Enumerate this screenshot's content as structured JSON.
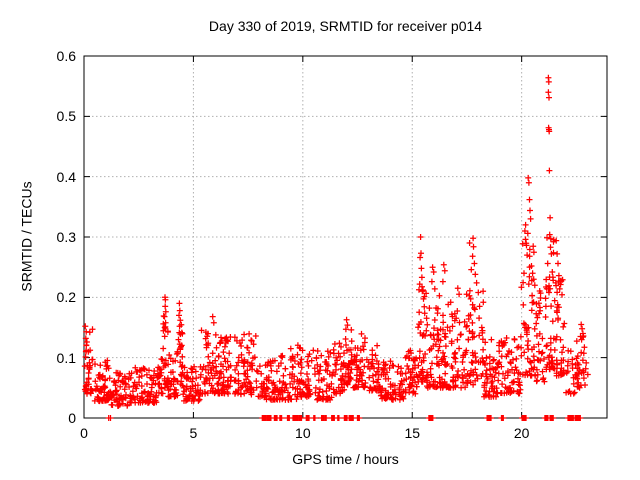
{
  "chart_data": {
    "type": "scatter",
    "title": "Day 330 of 2019, SRMTID for receiver p014",
    "xlabel": "GPS time / hours",
    "ylabel": "SRMTID / TECUs",
    "xlim": [
      0,
      23.9
    ],
    "ylim": [
      0,
      0.6
    ],
    "xticks": [
      0,
      5,
      10,
      15,
      20
    ],
    "yticks": [
      0,
      0.1,
      0.2,
      0.3,
      0.4,
      0.5,
      0.6
    ],
    "grid": true,
    "grid_color": "#b0b0b0",
    "frame_color": "#000000",
    "marker": {
      "style": "plus",
      "color": "#ff0000",
      "size": 7
    },
    "series_name": "SRMTID",
    "baseline_clusters": [
      [
        0.02,
        0.45,
        40,
        0.04,
        0.155
      ],
      [
        0.45,
        1.2,
        58,
        0.028,
        0.105
      ],
      [
        1.2,
        2.3,
        70,
        0.02,
        0.075
      ],
      [
        2.3,
        3.35,
        75,
        0.025,
        0.085
      ],
      [
        3.35,
        3.62,
        20,
        0.04,
        0.105
      ],
      [
        3.62,
        3.85,
        26,
        0.05,
        0.175
      ],
      [
        3.85,
        4.28,
        32,
        0.035,
        0.115
      ],
      [
        4.28,
        4.52,
        24,
        0.05,
        0.165
      ],
      [
        4.52,
        5.35,
        60,
        0.028,
        0.085
      ],
      [
        5.35,
        6.25,
        64,
        0.04,
        0.15
      ],
      [
        6.25,
        7.15,
        64,
        0.04,
        0.135
      ],
      [
        7.15,
        7.95,
        56,
        0.038,
        0.14
      ],
      [
        7.95,
        8.65,
        44,
        0.03,
        0.095
      ],
      [
        8.65,
        9.75,
        70,
        0.03,
        0.105
      ],
      [
        9.75,
        10.55,
        54,
        0.035,
        0.125
      ],
      [
        10.55,
        11.35,
        54,
        0.03,
        0.115
      ],
      [
        11.35,
        11.9,
        40,
        0.04,
        0.125
      ],
      [
        11.9,
        12.3,
        32,
        0.055,
        0.15
      ],
      [
        12.3,
        12.95,
        48,
        0.05,
        0.14
      ],
      [
        12.95,
        13.55,
        42,
        0.045,
        0.125
      ],
      [
        13.55,
        14.65,
        72,
        0.03,
        0.095
      ],
      [
        14.65,
        15.25,
        44,
        0.04,
        0.115
      ],
      [
        15.25,
        15.6,
        34,
        0.06,
        0.22
      ],
      [
        15.6,
        16.3,
        60,
        0.05,
        0.21
      ],
      [
        16.3,
        17.45,
        85,
        0.05,
        0.195
      ],
      [
        17.45,
        18.25,
        62,
        0.055,
        0.22
      ],
      [
        18.25,
        18.85,
        44,
        0.035,
        0.13
      ],
      [
        18.85,
        19.95,
        68,
        0.04,
        0.135
      ],
      [
        19.95,
        20.65,
        55,
        0.07,
        0.3
      ],
      [
        20.65,
        21.05,
        30,
        0.06,
        0.22
      ],
      [
        21.05,
        21.55,
        45,
        0.08,
        0.3
      ],
      [
        21.55,
        21.95,
        40,
        0.07,
        0.23
      ],
      [
        21.95,
        22.45,
        18,
        0.04,
        0.12
      ],
      [
        22.45,
        23.05,
        36,
        0.05,
        0.155
      ]
    ],
    "peak_points": [
      [
        0.06,
        0.152
      ],
      [
        0.1,
        0.143
      ],
      [
        0.08,
        0.132
      ],
      [
        3.7,
        0.2
      ],
      [
        3.72,
        0.196
      ],
      [
        3.71,
        0.185
      ],
      [
        3.74,
        0.176
      ],
      [
        3.68,
        0.168
      ],
      [
        3.73,
        0.158
      ],
      [
        3.69,
        0.15
      ],
      [
        4.36,
        0.19
      ],
      [
        4.38,
        0.178
      ],
      [
        4.34,
        0.17
      ],
      [
        4.4,
        0.162
      ],
      [
        4.37,
        0.152
      ],
      [
        5.88,
        0.168
      ],
      [
        5.93,
        0.158
      ],
      [
        9.45,
        0.115
      ],
      [
        12.0,
        0.163
      ],
      [
        12.04,
        0.154
      ],
      [
        11.97,
        0.147
      ],
      [
        15.38,
        0.3
      ],
      [
        15.4,
        0.273
      ],
      [
        15.36,
        0.266
      ],
      [
        15.42,
        0.248
      ],
      [
        15.44,
        0.233
      ],
      [
        15.34,
        0.222
      ],
      [
        15.46,
        0.21
      ],
      [
        15.93,
        0.25
      ],
      [
        15.98,
        0.242
      ],
      [
        15.9,
        0.226
      ],
      [
        16.03,
        0.214
      ],
      [
        16.44,
        0.254
      ],
      [
        16.49,
        0.244
      ],
      [
        16.4,
        0.226
      ],
      [
        17.08,
        0.215
      ],
      [
        17.14,
        0.205
      ],
      [
        17.62,
        0.29
      ],
      [
        17.78,
        0.298
      ],
      [
        17.8,
        0.284
      ],
      [
        17.76,
        0.268
      ],
      [
        17.84,
        0.256
      ],
      [
        17.7,
        0.246
      ],
      [
        17.88,
        0.238
      ],
      [
        17.94,
        0.224
      ],
      [
        18.02,
        0.208
      ],
      [
        20.3,
        0.398
      ],
      [
        20.33,
        0.39
      ],
      [
        20.36,
        0.362
      ],
      [
        20.38,
        0.344
      ],
      [
        20.41,
        0.33
      ],
      [
        20.18,
        0.32
      ],
      [
        20.15,
        0.31
      ],
      [
        20.28,
        0.306
      ],
      [
        20.22,
        0.286
      ],
      [
        20.25,
        0.27
      ],
      [
        20.45,
        0.252
      ],
      [
        20.5,
        0.24
      ],
      [
        20.55,
        0.23
      ],
      [
        20.6,
        0.22
      ],
      [
        21.22,
        0.564
      ],
      [
        21.24,
        0.557
      ],
      [
        21.22,
        0.54
      ],
      [
        21.25,
        0.531
      ],
      [
        21.23,
        0.481
      ],
      [
        21.25,
        0.478
      ],
      [
        21.26,
        0.475
      ],
      [
        21.27,
        0.41
      ],
      [
        21.3,
        0.332
      ],
      [
        21.28,
        0.304
      ],
      [
        21.33,
        0.297
      ],
      [
        21.36,
        0.272
      ],
      [
        21.19,
        0.256
      ],
      [
        21.4,
        0.242
      ],
      [
        21.44,
        0.228
      ],
      [
        21.58,
        0.294
      ],
      [
        21.62,
        0.272
      ],
      [
        21.66,
        0.256
      ],
      [
        21.7,
        0.236
      ],
      [
        21.56,
        0.224
      ],
      [
        21.74,
        0.214
      ],
      [
        22.72,
        0.155
      ],
      [
        22.76,
        0.148
      ],
      [
        22.8,
        0.14
      ],
      [
        22.74,
        0.13
      ]
    ],
    "zero_runs": [
      [
        1.13,
        1.22,
        0.08
      ],
      [
        8.15,
        8.32,
        0.03
      ],
      [
        8.36,
        8.56,
        0.03
      ],
      [
        8.7,
        8.82,
        0.04
      ],
      [
        8.95,
        9.06,
        0.04
      ],
      [
        9.3,
        9.4,
        0.04
      ],
      [
        9.55,
        9.76,
        0.03
      ],
      [
        9.82,
        9.94,
        0.04
      ],
      [
        10.16,
        10.3,
        0.04
      ],
      [
        10.5,
        10.58,
        0.05
      ],
      [
        10.86,
        10.96,
        0.05
      ],
      [
        11.02,
        11.08,
        0.05
      ],
      [
        11.32,
        11.46,
        0.04
      ],
      [
        11.6,
        11.68,
        0.05
      ],
      [
        11.9,
        12.02,
        0.04
      ],
      [
        12.12,
        12.32,
        0.03
      ],
      [
        12.5,
        12.6,
        0.04
      ],
      [
        15.76,
        15.94,
        0.03
      ],
      [
        18.42,
        18.6,
        0.03
      ],
      [
        19.08,
        19.16,
        0.04
      ],
      [
        20.02,
        20.2,
        0.03
      ],
      [
        21.06,
        21.2,
        0.035
      ],
      [
        21.3,
        21.44,
        0.035
      ],
      [
        22.12,
        22.36,
        0.03
      ],
      [
        22.44,
        22.68,
        0.03
      ]
    ]
  }
}
